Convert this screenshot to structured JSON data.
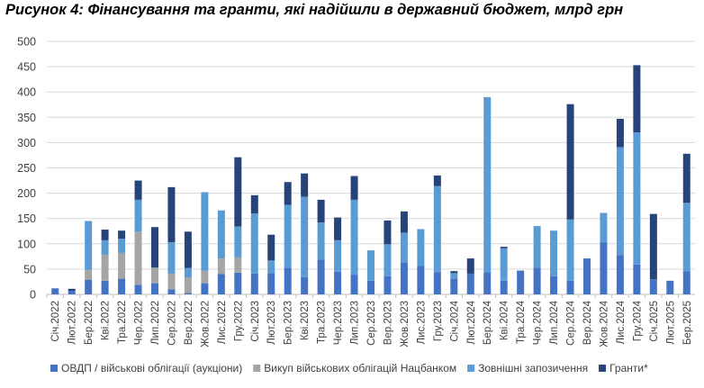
{
  "chart_data": {
    "type": "bar",
    "stacked": true,
    "title": "Рисунок 4: Фінансування та гранти, які надійшли в державний бюджет, млрд грн",
    "xlabel": "",
    "ylabel": "",
    "ylim": [
      0,
      500
    ],
    "yticks": [
      "0",
      "50",
      "100",
      "150",
      "200",
      "250",
      "300",
      "350",
      "400",
      "450",
      "500"
    ],
    "grid": true,
    "legend_position": "bottom",
    "categories": [
      "Січ.2022",
      "Лют.2022",
      "Бер.2022",
      "Кві.2022",
      "Тра.2022",
      "Чер.2022",
      "Лип.2022",
      "Сер.2022",
      "Вер.2022",
      "Жов.2022",
      "Лис.2022",
      "Гру.2022",
      "Січ.2023",
      "Лют.2023",
      "Бер.2023",
      "Кві.2023",
      "Тра.2023",
      "Чер.2023",
      "Лип.2023",
      "Сер.2023",
      "Вер.2023",
      "Жов.2023",
      "Лис.2023",
      "Гру.2023",
      "Січ.2024",
      "Лют.2024",
      "Бер.2024",
      "Кві.2024",
      "Тра.2024",
      "Чер.2024",
      "Лип.2024",
      "Сер.2024",
      "Вер.2024",
      "Жов.2024",
      "Лис.2024",
      "Гру.2024",
      "Січ.2025",
      "Лют.2025",
      "Бер.2025"
    ],
    "series": [
      {
        "name": "ОВДП / військові облігації (аукціони)",
        "color": "#4472C4",
        "values": [
          12,
          7,
          29,
          27,
          31,
          19,
          22,
          10,
          3,
          22,
          40,
          43,
          41,
          42,
          53,
          34,
          69,
          45,
          39,
          27,
          36,
          63,
          56,
          44,
          31,
          41,
          44,
          27,
          47,
          53,
          36,
          27,
          71,
          103,
          78,
          59,
          30,
          27,
          46
        ]
      },
      {
        "name": "Викуп військових облігацій Нацбанком",
        "color": "#A5A5A5",
        "values": [
          0,
          0,
          20,
          51,
          51,
          105,
          31,
          31,
          30,
          25,
          31,
          30,
          0,
          0,
          0,
          0,
          0,
          0,
          0,
          0,
          0,
          0,
          0,
          0,
          0,
          0,
          0,
          0,
          0,
          0,
          0,
          0,
          0,
          0,
          0,
          0,
          0,
          0,
          0
        ]
      },
      {
        "name": "Зовнішні запозичення",
        "color": "#5B9BD5",
        "values": [
          0,
          0,
          96,
          29,
          28,
          63,
          0,
          62,
          19,
          155,
          95,
          61,
          119,
          25,
          124,
          159,
          73,
          62,
          148,
          60,
          63,
          59,
          73,
          170,
          11,
          0,
          346,
          64,
          0,
          82,
          90,
          121,
          0,
          58,
          213,
          261,
          0,
          0,
          135
        ]
      },
      {
        "name": "Гранти*",
        "color": "#264478",
        "values": [
          0,
          4,
          0,
          21,
          16,
          38,
          80,
          109,
          72,
          0,
          0,
          137,
          36,
          51,
          45,
          46,
          45,
          45,
          47,
          0,
          47,
          42,
          0,
          21,
          4,
          30,
          0,
          3,
          0,
          0,
          0,
          228,
          0,
          0,
          56,
          133,
          129,
          0,
          97
        ]
      }
    ]
  }
}
